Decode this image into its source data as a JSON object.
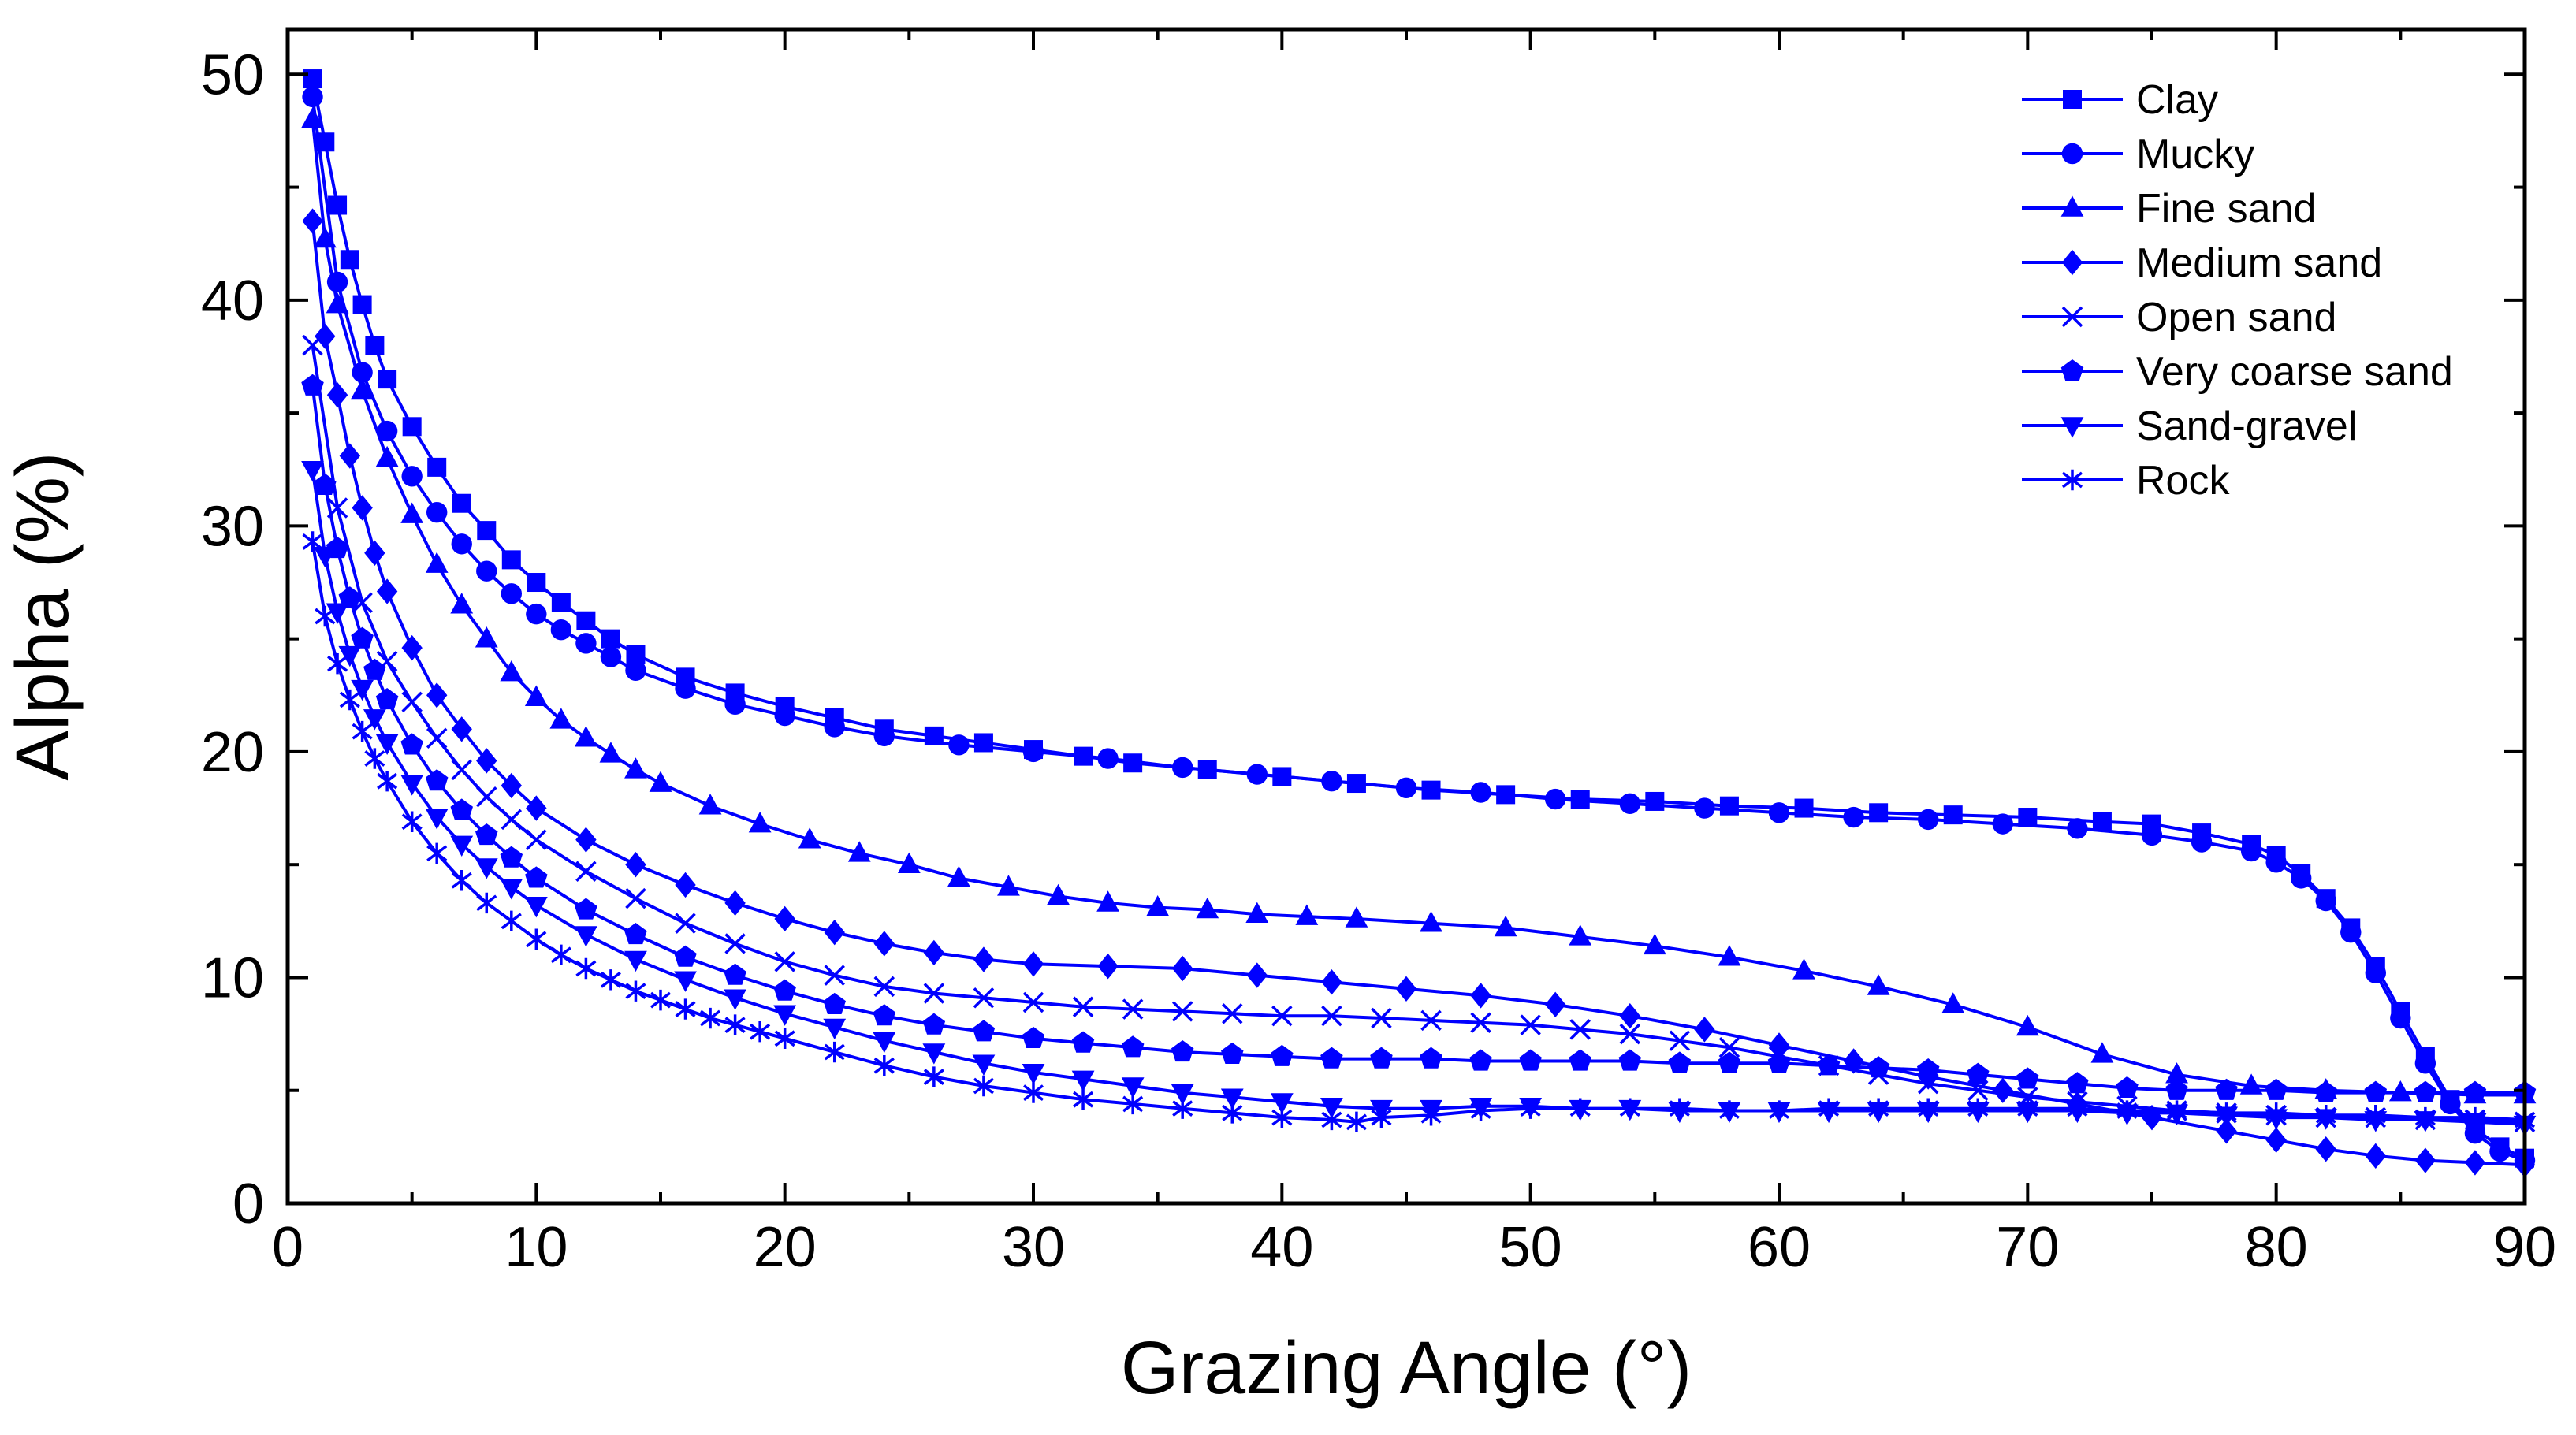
{
  "chart_data": {
    "type": "line",
    "title": "",
    "xlabel": "Grazing Angle (°)",
    "ylabel": "Alpha (%)",
    "xlim": [
      0,
      90
    ],
    "ylim": [
      0,
      52
    ],
    "xticks": [
      0,
      10,
      20,
      30,
      40,
      50,
      60,
      70,
      80,
      90
    ],
    "yticks": [
      0,
      10,
      20,
      30,
      40,
      50
    ],
    "xtick_labels": [
      "0",
      "10",
      "20",
      "30",
      "40",
      "50",
      "60",
      "70",
      "80",
      "90"
    ],
    "ytick_labels": [
      "0",
      "10",
      "20",
      "30",
      "40",
      "50"
    ],
    "grid": false,
    "legend_position": "top-right",
    "line_color": "#0000ff",
    "series": [
      {
        "name": "Clay",
        "marker": "square",
        "x": [
          1,
          1.5,
          2,
          2.5,
          3,
          3.5,
          4,
          5,
          6,
          7,
          8,
          9,
          10,
          11,
          12,
          13,
          14,
          16,
          18,
          20,
          22,
          24,
          26,
          28,
          30,
          32,
          34,
          37,
          40,
          43,
          46,
          49,
          52,
          55,
          58,
          61,
          64,
          67,
          70,
          73,
          75,
          77,
          79,
          80,
          81,
          82,
          83,
          84,
          85,
          86,
          87,
          88,
          89,
          90
        ],
        "y": [
          49.8,
          47,
          44.2,
          41.8,
          39.8,
          38,
          36.5,
          34.4,
          32.6,
          31,
          29.8,
          28.5,
          27.5,
          26.6,
          25.8,
          25,
          24.3,
          23.3,
          22.6,
          22,
          21.5,
          21,
          20.7,
          20.4,
          20.1,
          19.8,
          19.5,
          19.2,
          18.9,
          18.6,
          18.3,
          18.1,
          17.9,
          17.8,
          17.6,
          17.5,
          17.3,
          17.2,
          17.1,
          16.9,
          16.8,
          16.4,
          15.9,
          15.4,
          14.6,
          13.5,
          12.2,
          10.5,
          8.5,
          6.5,
          4.6,
          3.3,
          2.5,
          2.0
        ]
      },
      {
        "name": "Mucky",
        "marker": "circle",
        "x": [
          1,
          2,
          3,
          4,
          5,
          6,
          7,
          8,
          9,
          10,
          11,
          12,
          13,
          14,
          16,
          18,
          20,
          22,
          24,
          27,
          30,
          33,
          36,
          39,
          42,
          45,
          48,
          51,
          54,
          57,
          60,
          63,
          66,
          69,
          72,
          75,
          77,
          79,
          80,
          81,
          82,
          83,
          84,
          85,
          86,
          87,
          88,
          89,
          90
        ],
        "y": [
          49,
          40.8,
          36.8,
          34.2,
          32.2,
          30.6,
          29.2,
          28,
          27,
          26.1,
          25.4,
          24.8,
          24.2,
          23.6,
          22.8,
          22.1,
          21.6,
          21.1,
          20.7,
          20.3,
          20,
          19.7,
          19.3,
          19,
          18.7,
          18.4,
          18.2,
          17.9,
          17.7,
          17.5,
          17.3,
          17.1,
          17,
          16.8,
          16.6,
          16.3,
          16,
          15.6,
          15.1,
          14.4,
          13.4,
          12,
          10.2,
          8.2,
          6.2,
          4.4,
          3.1,
          2.3,
          1.9
        ]
      },
      {
        "name": "Fine sand",
        "marker": "triangle-up",
        "x": [
          1,
          1.5,
          2,
          3,
          4,
          5,
          6,
          7,
          8,
          9,
          10,
          11,
          12,
          13,
          14,
          15,
          17,
          19,
          21,
          23,
          25,
          27,
          29,
          31,
          33,
          35,
          37,
          39,
          41,
          43,
          46,
          49,
          52,
          55,
          58,
          61,
          64,
          67,
          70,
          73,
          76,
          79,
          82,
          85,
          88,
          90
        ],
        "y": [
          48,
          42.7,
          39.8,
          36,
          33,
          30.5,
          28.3,
          26.5,
          25,
          23.5,
          22.4,
          21.4,
          20.6,
          19.9,
          19.2,
          18.6,
          17.6,
          16.8,
          16.1,
          15.5,
          15,
          14.4,
          14,
          13.6,
          13.3,
          13.1,
          13,
          12.8,
          12.7,
          12.6,
          12.4,
          12.2,
          11.8,
          11.4,
          10.9,
          10.3,
          9.6,
          8.8,
          7.8,
          6.6,
          5.7,
          5.2,
          5.0,
          4.9,
          4.8,
          4.8
        ]
      },
      {
        "name": "Medium sand",
        "marker": "diamond",
        "x": [
          1,
          1.5,
          2,
          2.5,
          3,
          3.5,
          4,
          5,
          6,
          7,
          8,
          9,
          10,
          12,
          14,
          16,
          18,
          20,
          22,
          24,
          26,
          28,
          30,
          33,
          36,
          39,
          42,
          45,
          48,
          51,
          54,
          57,
          60,
          63,
          66,
          69,
          72,
          75,
          78,
          80,
          82,
          84,
          86,
          88,
          90
        ],
        "y": [
          43.5,
          38.4,
          35.8,
          33.1,
          30.8,
          28.8,
          27.1,
          24.6,
          22.5,
          21,
          19.6,
          18.5,
          17.5,
          16.1,
          15,
          14.1,
          13.3,
          12.6,
          12,
          11.5,
          11.1,
          10.8,
          10.6,
          10.5,
          10.4,
          10.1,
          9.8,
          9.5,
          9.2,
          8.8,
          8.3,
          7.7,
          7,
          6.3,
          5.6,
          5,
          4.4,
          3.8,
          3.2,
          2.8,
          2.4,
          2.1,
          1.9,
          1.8,
          1.7
        ]
      },
      {
        "name": "Open sand",
        "marker": "x",
        "x": [
          1,
          2,
          3,
          4,
          5,
          6,
          7,
          8,
          9,
          10,
          12,
          14,
          16,
          18,
          20,
          22,
          24,
          26,
          28,
          30,
          32,
          34,
          36,
          38,
          40,
          42,
          44,
          46,
          48,
          50,
          52,
          54,
          56,
          58,
          60,
          62,
          64,
          66,
          68,
          70,
          72,
          74,
          76,
          78,
          80,
          82,
          84,
          86,
          88,
          90
        ],
        "y": [
          38,
          30.8,
          26.6,
          24,
          22.2,
          20.6,
          19.2,
          18,
          17,
          16.1,
          14.7,
          13.5,
          12.4,
          11.5,
          10.7,
          10.1,
          9.6,
          9.3,
          9.1,
          8.9,
          8.7,
          8.6,
          8.5,
          8.4,
          8.3,
          8.3,
          8.2,
          8.1,
          8,
          7.9,
          7.7,
          7.5,
          7.2,
          6.9,
          6.5,
          6.1,
          5.7,
          5.3,
          5,
          4.7,
          4.5,
          4.3,
          4.1,
          4,
          3.9,
          3.8,
          3.8,
          3.7,
          3.7,
          3.6
        ]
      },
      {
        "name": "Very coarse sand",
        "marker": "pentagon",
        "x": [
          1,
          1.5,
          2,
          2.5,
          3,
          3.5,
          4,
          5,
          6,
          7,
          8,
          9,
          10,
          12,
          14,
          16,
          18,
          20,
          22,
          24,
          26,
          28,
          30,
          32,
          34,
          36,
          38,
          40,
          42,
          44,
          46,
          48,
          50,
          52,
          54,
          56,
          58,
          60,
          62,
          64,
          66,
          68,
          70,
          72,
          74,
          76,
          78,
          80,
          82,
          84,
          86,
          88,
          90
        ],
        "y": [
          36.2,
          31.8,
          29,
          26.8,
          25,
          23.6,
          22.3,
          20.3,
          18.7,
          17.4,
          16.3,
          15.3,
          14.4,
          13,
          11.9,
          10.9,
          10.1,
          9.4,
          8.8,
          8.3,
          7.9,
          7.6,
          7.3,
          7.1,
          6.9,
          6.7,
          6.6,
          6.5,
          6.4,
          6.4,
          6.4,
          6.3,
          6.3,
          6.3,
          6.3,
          6.2,
          6.2,
          6.2,
          6.1,
          6,
          5.9,
          5.7,
          5.5,
          5.3,
          5.1,
          5,
          5,
          5,
          4.9,
          4.9,
          4.9,
          4.9,
          4.9
        ]
      },
      {
        "name": "Sand-gravel",
        "marker": "triangle-down",
        "x": [
          1,
          1.5,
          2,
          2.5,
          3,
          3.5,
          4,
          5,
          6,
          7,
          8,
          9,
          10,
          12,
          14,
          16,
          18,
          20,
          22,
          24,
          26,
          28,
          30,
          32,
          34,
          36,
          38,
          40,
          42,
          44,
          46,
          48,
          50,
          52,
          54,
          56,
          58,
          60,
          62,
          64,
          66,
          68,
          70,
          72,
          74,
          76,
          78,
          80,
          82,
          84,
          86,
          88,
          90
        ],
        "y": [
          32.5,
          28.7,
          26.2,
          24.3,
          22.8,
          21.5,
          20.4,
          18.6,
          17.1,
          15.9,
          14.9,
          14,
          13.2,
          11.9,
          10.8,
          9.9,
          9.1,
          8.4,
          7.8,
          7.2,
          6.7,
          6.2,
          5.8,
          5.5,
          5.2,
          4.9,
          4.7,
          4.5,
          4.3,
          4.2,
          4.2,
          4.3,
          4.3,
          4.2,
          4.2,
          4.1,
          4.1,
          4.1,
          4.1,
          4.1,
          4.1,
          4.1,
          4.1,
          4.1,
          4.0,
          4.0,
          3.9,
          3.8,
          3.8,
          3.7,
          3.7,
          3.6,
          3.5
        ]
      },
      {
        "name": "Rock",
        "marker": "asterisk",
        "x": [
          1,
          1.5,
          2,
          2.5,
          3,
          3.5,
          4,
          5,
          6,
          7,
          8,
          9,
          10,
          11,
          12,
          13,
          14,
          15,
          16,
          17,
          18,
          19,
          20,
          22,
          24,
          26,
          28,
          30,
          32,
          34,
          36,
          38,
          40,
          42,
          43,
          44,
          46,
          48,
          50,
          52,
          54,
          56,
          58,
          60,
          62,
          64,
          66,
          68,
          70,
          72,
          74,
          76,
          78,
          80,
          82,
          84,
          86,
          88,
          90
        ],
        "y": [
          29.3,
          26,
          23.9,
          22.3,
          20.9,
          19.7,
          18.7,
          16.9,
          15.5,
          14.3,
          13.3,
          12.5,
          11.7,
          11,
          10.4,
          9.9,
          9.4,
          9,
          8.6,
          8.2,
          7.9,
          7.6,
          7.3,
          6.7,
          6.1,
          5.6,
          5.2,
          4.9,
          4.6,
          4.4,
          4.2,
          4,
          3.8,
          3.7,
          3.6,
          3.8,
          3.9,
          4.1,
          4.2,
          4.2,
          4.2,
          4.2,
          4.1,
          4.1,
          4.2,
          4.2,
          4.2,
          4.2,
          4.2,
          4.2,
          4.1,
          4.1,
          4,
          4,
          3.9,
          3.9,
          3.8,
          3.8,
          3.7
        ]
      }
    ]
  }
}
